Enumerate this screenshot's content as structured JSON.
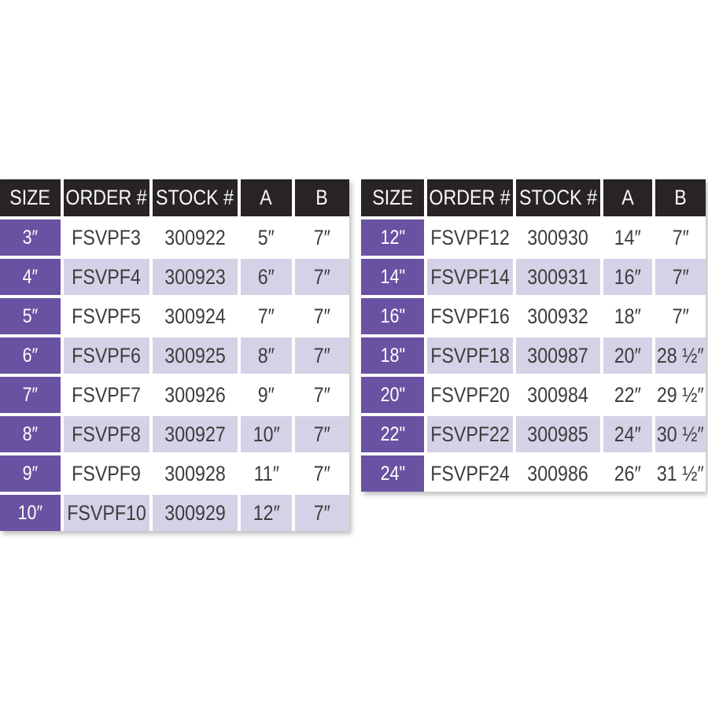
{
  "colors": {
    "page_bg": "#ffffff",
    "header_bg": "#282425",
    "header_text": "#fafafa",
    "size_bg": "#6952a2",
    "size_text": "#ffffff",
    "row_even_bg": "#ffffff",
    "row_odd_bg": "#d7d1e7",
    "data_text": "#3e3c3d"
  },
  "chart_data": [
    {
      "type": "table",
      "name": "small-sizes-spec-table",
      "columns": [
        "SIZE",
        "ORDER #",
        "STOCK #",
        "A",
        "B"
      ],
      "rows": [
        [
          "3″",
          "FSVPF3",
          "300922",
          "5″",
          "7″"
        ],
        [
          "4″",
          "FSVPF4",
          "300923",
          "6″",
          "7″"
        ],
        [
          "5″",
          "FSVPF5",
          "300924",
          "7″",
          "7″"
        ],
        [
          "6″",
          "FSVPF6",
          "300925",
          "8″",
          "7″"
        ],
        [
          "7″",
          "FSVPF7",
          "300926",
          "9″",
          "7″"
        ],
        [
          "8″",
          "FSVPF8",
          "300927",
          "10″",
          "7″"
        ],
        [
          "9″",
          "FSVPF9",
          "300928",
          "11″",
          "7″"
        ],
        [
          "10″",
          "FSVPF10",
          "300929",
          "12″",
          "7″"
        ]
      ]
    },
    {
      "type": "table",
      "name": "large-sizes-spec-table",
      "columns": [
        "SIZE",
        "ORDER #",
        "STOCK #",
        "A",
        "B"
      ],
      "rows": [
        [
          "12\"",
          "FSVPF12",
          "300930",
          "14″",
          "7″"
        ],
        [
          "14\"",
          "FSVPF14",
          "300931",
          "16″",
          "7″"
        ],
        [
          "16\"",
          "FSVPF16",
          "300932",
          "18″",
          "7″"
        ],
        [
          "18\"",
          "FSVPF18",
          "300987",
          "20″",
          "28 ½″"
        ],
        [
          "20\"",
          "FSVPF20",
          "300984",
          "22″",
          "29 ½″"
        ],
        [
          "22\"",
          "FSVPF22",
          "300985",
          "24″",
          "30 ½″"
        ],
        [
          "24\"",
          "FSVPF24",
          "300986",
          "26″",
          "31 ½″"
        ]
      ]
    }
  ]
}
